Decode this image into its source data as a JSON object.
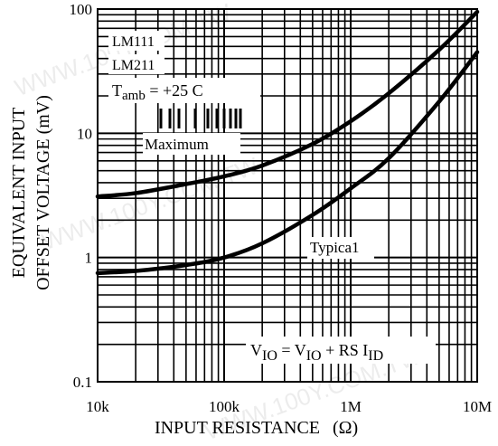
{
  "watermark": "WWW.100Y.COM.TW",
  "chart_data": {
    "type": "line",
    "xscale": "log",
    "yscale": "log",
    "xlim": [
      10000,
      10000000
    ],
    "ylim": [
      0.1,
      100
    ],
    "grid": true,
    "xlabel": "INPUT RESISTANCE",
    "xlabel_unit": "(Ω)",
    "ylabel_line1": "EQUIVALENT INPUT",
    "ylabel_line2": "OFFSET VOLTAGE (mV)",
    "x_ticks": [
      {
        "value": 10000,
        "label": "10k"
      },
      {
        "value": 100000,
        "label": "100k"
      },
      {
        "value": 1000000,
        "label": "1M"
      },
      {
        "value": 10000000,
        "label": "10M"
      }
    ],
    "y_ticks": [
      {
        "value": 100,
        "label": "100"
      },
      {
        "value": 10,
        "label": "10"
      },
      {
        "value": 1,
        "label": "1"
      },
      {
        "value": 0.1,
        "label": "0.1"
      }
    ],
    "legend_lines": [
      "LM111",
      "LM211"
    ],
    "condition": {
      "prefix": "T",
      "sub": "amb",
      "value": " = +25  C"
    },
    "formula": {
      "v1": "V",
      "s1": "IO",
      "eq": " = ",
      "v2": "V",
      "s2": "IO",
      "plus": " + RS  I",
      "s3": "ID"
    },
    "series": [
      {
        "name": "Maximum",
        "x": [
          10000,
          20000,
          50000,
          100000,
          200000,
          500000,
          1000000,
          2000000,
          5000000,
          10000000
        ],
        "y": [
          3.1,
          3.3,
          3.9,
          4.5,
          5.5,
          8.2,
          12.5,
          21.0,
          47.0,
          95.0
        ]
      },
      {
        "name": "Typica1",
        "x": [
          10000,
          20000,
          50000,
          100000,
          200000,
          500000,
          1000000,
          2000000,
          5000000,
          10000000
        ],
        "y": [
          0.75,
          0.78,
          0.87,
          1.0,
          1.3,
          2.2,
          3.6,
          6.3,
          18.0,
          45.0
        ]
      }
    ]
  }
}
